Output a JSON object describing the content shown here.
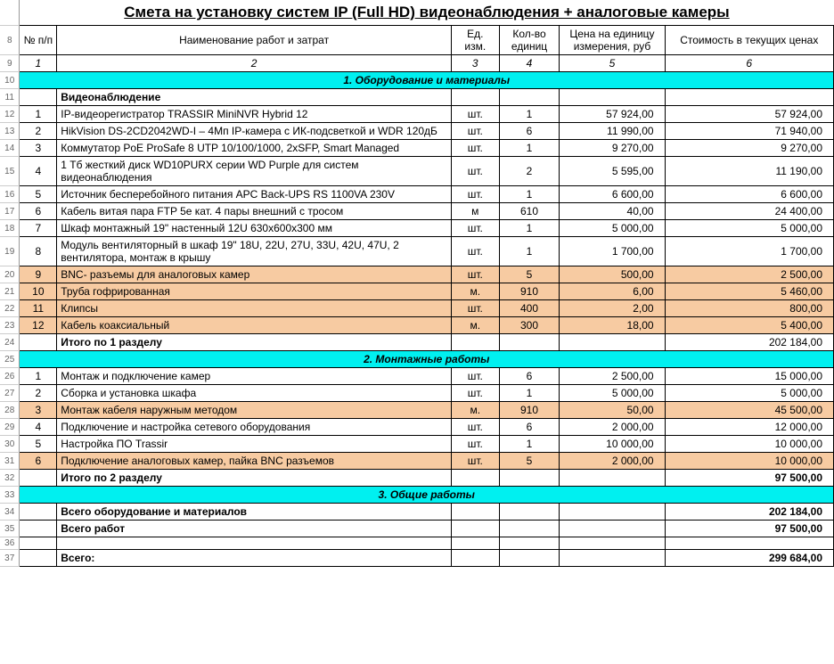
{
  "title": "Смета на установку систем IP (Full HD) видеонаблюдения + аналоговые камеры",
  "header": {
    "num": "№ п/п",
    "name": "Наименование работ и затрат",
    "unit": "Ед. изм.",
    "qty": "Кол-во единиц",
    "price": "Цена на единицу измерения, руб",
    "cost": "Стоимость в текущих ценах"
  },
  "colindex": {
    "a": "1",
    "b": "2",
    "c": "3",
    "d": "4",
    "e": "5",
    "f": "6"
  },
  "sections": {
    "s1": "1. Оборудование и материалы",
    "s1sub": "Видеонаблюдение",
    "s1total_label": "Итого по 1 разделу",
    "s1total": "202 184,00",
    "s2": "2. Монтажные работы",
    "s2total_label": "Итого по 2 разделу",
    "s2total": "97 500,00",
    "s3": "3. Общие работы",
    "eq_label": "Всего оборудование и материалов",
    "eq_total": "202 184,00",
    "work_label": "Всего работ",
    "work_total": "97 500,00",
    "grand_label": "Всего:",
    "grand_total": "299 684,00"
  },
  "s1": [
    {
      "n": "1",
      "name": "IP-видеорегистратор TRASSIR MiniNVR Hybrid 12",
      "u": "шт.",
      "q": "1",
      "p": "57 924,00",
      "c": "57 924,00",
      "hl": false
    },
    {
      "n": "2",
      "name": "HikVision DS-2CD2042WD-I – 4Мп IP-камера с ИК-подсветкой и WDR 120дБ",
      "u": "шт.",
      "q": "6",
      "p": "11 990,00",
      "c": "71 940,00",
      "hl": false
    },
    {
      "n": "3",
      "name": "Коммутатор PoE ProSafe 8 UTP 10/100/1000, 2xSFP, Smart Managed",
      "u": "шт.",
      "q": "1",
      "p": "9 270,00",
      "c": "9 270,00",
      "hl": false
    },
    {
      "n": "4",
      "name": "1 Тб жесткий диск WD10PURX серии WD Purple для систем видеонаблюдения",
      "u": "шт.",
      "q": "2",
      "p": "5 595,00",
      "c": "11 190,00",
      "hl": false
    },
    {
      "n": "5",
      "name": "Источник бесперебойного питания APC Back-UPS RS 1100VA 230V",
      "u": "шт.",
      "q": "1",
      "p": "6 600,00",
      "c": "6 600,00",
      "hl": false
    },
    {
      "n": "6",
      "name": "Кабель витая пара FTP 5е кат. 4 пары внешний с тросом",
      "u": "м",
      "q": "610",
      "p": "40,00",
      "c": "24 400,00",
      "hl": false
    },
    {
      "n": "7",
      "name": "Шкаф монтажный 19\" настенный 12U 630х600х300 мм",
      "u": "шт.",
      "q": "1",
      "p": "5 000,00",
      "c": "5 000,00",
      "hl": false
    },
    {
      "n": "8",
      "name": "Модуль вентиляторный в шкаф 19\" 18U, 22U, 27U, 33U, 42U, 47U, 2 вентилятора, монтаж в крышу",
      "u": "шт.",
      "q": "1",
      "p": "1 700,00",
      "c": "1 700,00",
      "hl": false
    },
    {
      "n": "9",
      "name": "BNC- разъемы для аналоговых камер",
      "u": "шт.",
      "q": "5",
      "p": "500,00",
      "c": "2 500,00",
      "hl": true
    },
    {
      "n": "10",
      "name": "Труба гофрированная",
      "u": "м.",
      "q": "910",
      "p": "6,00",
      "c": "5 460,00",
      "hl": true
    },
    {
      "n": "11",
      "name": "Клипсы",
      "u": "шт.",
      "q": "400",
      "p": "2,00",
      "c": "800,00",
      "hl": true
    },
    {
      "n": "12",
      "name": "Кабель коаксиальный",
      "u": "м.",
      "q": "300",
      "p": "18,00",
      "c": "5 400,00",
      "hl": true
    }
  ],
  "s2": [
    {
      "n": "1",
      "name": "Монтаж и подключение камер",
      "u": "шт.",
      "q": "6",
      "p": "2 500,00",
      "c": "15 000,00",
      "hl": false
    },
    {
      "n": "2",
      "name": "Сборка и установка шкафа",
      "u": "шт.",
      "q": "1",
      "p": "5 000,00",
      "c": "5 000,00",
      "hl": false
    },
    {
      "n": "3",
      "name": "Монтаж кабеля наружным методом",
      "u": "м.",
      "q": "910",
      "p": "50,00",
      "c": "45 500,00",
      "hl": true
    },
    {
      "n": "4",
      "name": "Подключение и настройка сетевого оборудования",
      "u": "шт.",
      "q": "6",
      "p": "2 000,00",
      "c": "12 000,00",
      "hl": false
    },
    {
      "n": "5",
      "name": "Настройка ПО Trassir",
      "u": "шт.",
      "q": "1",
      "p": "10 000,00",
      "c": "10 000,00",
      "hl": false
    },
    {
      "n": "6",
      "name": "Подключение аналоговых камер, пайка BNC разъемов",
      "u": "шт.",
      "q": "5",
      "p": "2 000,00",
      "c": "10 000,00",
      "hl": true
    }
  ],
  "rownums": [
    "",
    "8",
    "9",
    "10",
    "11",
    "12",
    "13",
    "14",
    "15",
    "16",
    "17",
    "18",
    "19",
    "20",
    "21",
    "22",
    "23",
    "24",
    "25",
    "26",
    "27",
    "28",
    "29",
    "30",
    "31",
    "32",
    "33",
    "34",
    "35",
    "36",
    "37"
  ]
}
